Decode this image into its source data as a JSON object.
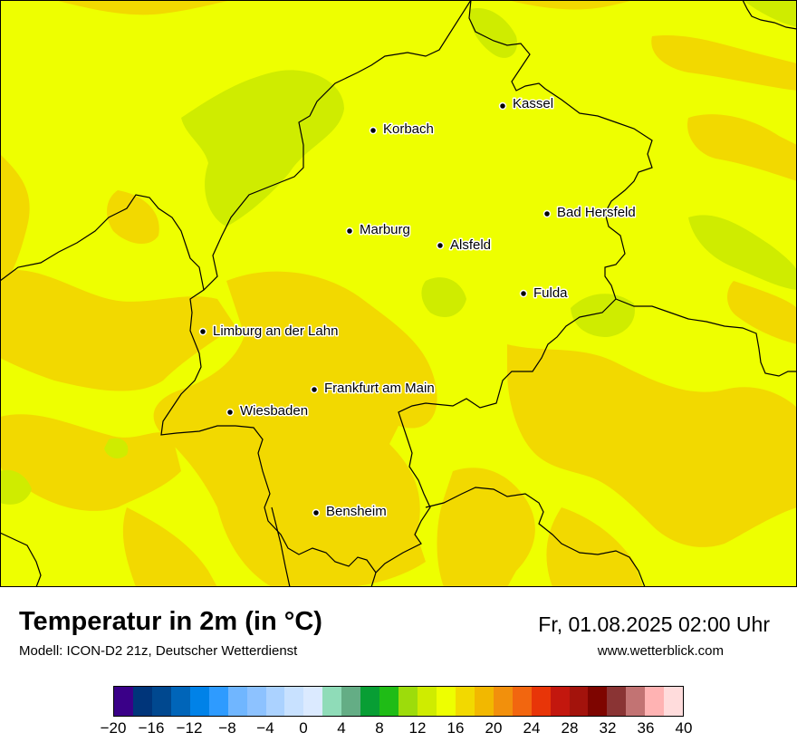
{
  "map": {
    "background_color": "#eeff00",
    "cities": [
      {
        "name": "Kassel"
      },
      {
        "name": "Korbach"
      },
      {
        "name": "Bad Hersfeld"
      },
      {
        "name": "Marburg"
      },
      {
        "name": "Alsfeld"
      },
      {
        "name": "Fulda"
      },
      {
        "name": "Limburg an der Lahn"
      },
      {
        "name": "Frankfurt am Main"
      },
      {
        "name": "Wiesbaden"
      },
      {
        "name": "Bensheim"
      }
    ]
  },
  "footer": {
    "title": "Temperatur in 2m (in °C)",
    "subtitle": "Modell: ICON-D2 21z, Deutscher Wetterdienst",
    "datetime": "Fr, 01.08.2025 02:00 Uhr",
    "website": "www.wetterblick.com"
  },
  "legend": {
    "colors": [
      "#3a0088",
      "#00357a",
      "#00488f",
      "#0065b9",
      "#0082e8",
      "#2e9bff",
      "#70b6ff",
      "#8dc2ff",
      "#abd2ff",
      "#c8e1ff",
      "#dbeaff",
      "#8fdcb8",
      "#64ad85",
      "#089e34",
      "#1fbc16",
      "#9ddc0b",
      "#cfec00",
      "#eeff00",
      "#f2d900",
      "#f2b800",
      "#f2900c",
      "#f2660f",
      "#e83508",
      "#c3170e",
      "#a3130c",
      "#7e0500",
      "#8a3434",
      "#c27373",
      "#ffb3b3",
      "#ffdcdc"
    ],
    "ticks": [
      "−20",
      "−16",
      "−12",
      "−8",
      "−4",
      "0",
      "4",
      "8",
      "12",
      "16",
      "20",
      "24",
      "28",
      "32",
      "36",
      "40"
    ]
  }
}
